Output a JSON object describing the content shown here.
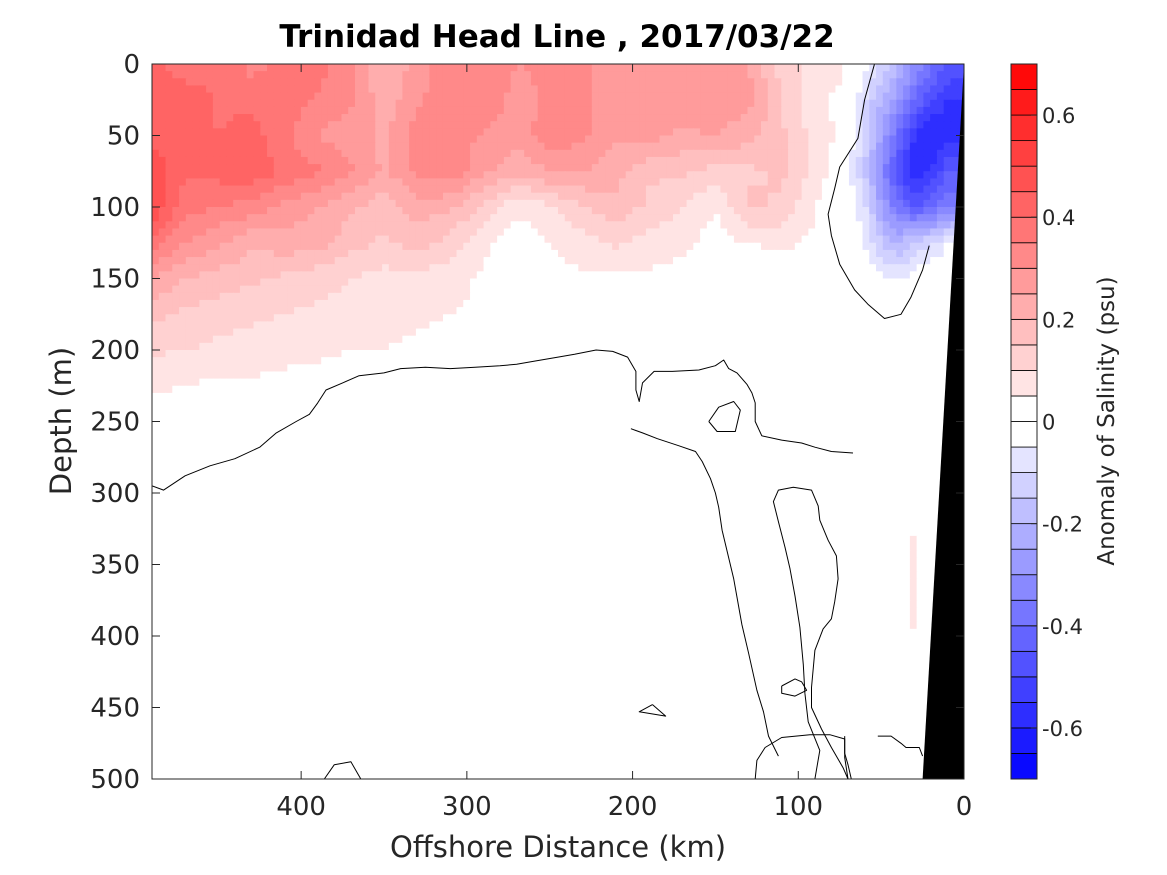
{
  "chart_data": {
    "type": "heatmap",
    "title": "Trinidad Head Line , 2017/03/22",
    "xlabel": "Offshore Distance (km)",
    "ylabel": "Depth (m)",
    "x_reversed": true,
    "y_reversed": true,
    "xlim": [
      490,
      0
    ],
    "ylim": [
      0,
      500
    ],
    "x_ticks": [
      400,
      300,
      200,
      100,
      0
    ],
    "y_ticks": [
      0,
      50,
      100,
      150,
      200,
      250,
      300,
      350,
      400,
      450,
      500
    ],
    "colorbar": {
      "label": "Anomaly of Salinity (psu)",
      "range": [
        -0.7,
        0.7
      ],
      "levels": 28,
      "ticks": [
        0.6,
        0.4,
        0.2,
        0,
        -0.2,
        -0.4,
        -0.6
      ],
      "tick_labels": [
        "0.6",
        "0.4",
        "0.2",
        "0",
        "-0.2",
        "-0.4",
        "-0.6"
      ],
      "colormap": "blue-white-red",
      "color_negative": "#0000ff",
      "color_zero": "#ffffff",
      "color_positive": "#ff0000"
    },
    "bathymetry_color": "#000000",
    "bathymetry_wedge": [
      [
        0,
        0
      ],
      [
        0,
        500
      ],
      [
        25,
        500
      ]
    ],
    "contour_level": 0,
    "zero_contours": [
      [
        [
          490,
          295
        ],
        [
          483,
          298
        ],
        [
          470,
          288
        ],
        [
          455,
          281
        ],
        [
          440,
          276
        ],
        [
          425,
          268
        ],
        [
          415,
          258
        ],
        [
          403,
          250
        ],
        [
          395,
          245
        ],
        [
          390,
          237
        ],
        [
          385,
          228
        ],
        [
          375,
          223
        ],
        [
          365,
          218
        ],
        [
          350,
          216
        ],
        [
          340,
          213
        ],
        [
          325,
          212
        ],
        [
          310,
          213
        ],
        [
          295,
          212
        ],
        [
          280,
          211
        ],
        [
          270,
          210
        ],
        [
          260,
          208
        ],
        [
          245,
          205
        ],
        [
          235,
          203
        ],
        [
          222,
          200
        ],
        [
          212,
          201
        ],
        [
          203,
          205
        ],
        [
          200,
          211
        ],
        [
          198,
          215
        ],
        [
          198,
          228
        ],
        [
          196,
          236
        ],
        [
          194,
          223
        ],
        [
          187,
          215
        ],
        [
          176,
          215
        ],
        [
          160,
          214
        ],
        [
          150,
          211
        ],
        [
          145,
          207
        ],
        [
          142,
          213
        ],
        [
          137,
          216
        ],
        [
          131,
          224
        ],
        [
          128,
          230
        ],
        [
          126,
          237
        ],
        [
          126,
          250
        ],
        [
          122,
          260
        ],
        [
          110,
          263
        ],
        [
          98,
          265
        ],
        [
          90,
          268
        ],
        [
          80,
          271
        ],
        [
          67,
          272
        ]
      ],
      [
        [
          154,
          250
        ],
        [
          148,
          240
        ],
        [
          139,
          236
        ],
        [
          135,
          242
        ],
        [
          138,
          257
        ],
        [
          149,
          257
        ],
        [
          154,
          250
        ]
      ],
      [
        [
          112,
          484
        ],
        [
          118,
          470
        ],
        [
          121,
          453
        ],
        [
          125,
          438
        ],
        [
          130,
          412
        ],
        [
          134,
          392
        ],
        [
          139,
          360
        ],
        [
          146,
          326
        ],
        [
          148,
          310
        ],
        [
          150,
          300
        ],
        [
          153,
          290
        ],
        [
          158,
          278
        ],
        [
          162,
          271
        ],
        [
          172,
          267
        ],
        [
          185,
          262
        ],
        [
          194,
          258
        ],
        [
          201,
          255
        ]
      ],
      [
        [
          90,
          500
        ],
        [
          87,
          480
        ],
        [
          94,
          460
        ],
        [
          96,
          440
        ],
        [
          97,
          420
        ],
        [
          99,
          394
        ],
        [
          102,
          372
        ],
        [
          105,
          353
        ],
        [
          108,
          338
        ],
        [
          112,
          320
        ],
        [
          115,
          306
        ],
        [
          112,
          298
        ],
        [
          103,
          296
        ],
        [
          92,
          298
        ],
        [
          88,
          309
        ],
        [
          87,
          319
        ],
        [
          82,
          333
        ],
        [
          77,
          344
        ],
        [
          76,
          360
        ],
        [
          78,
          376
        ],
        [
          80,
          388
        ],
        [
          85,
          395
        ],
        [
          90,
          410
        ],
        [
          92,
          436
        ],
        [
          92,
          450
        ],
        [
          86,
          465
        ],
        [
          80,
          478
        ],
        [
          73,
          492
        ],
        [
          70,
          500
        ]
      ],
      [
        [
          110,
          435
        ],
        [
          102,
          430
        ],
        [
          98,
          432
        ],
        [
          95,
          438
        ],
        [
          102,
          442
        ],
        [
          110,
          440
        ],
        [
          110,
          435
        ]
      ],
      [
        [
          188,
          448
        ],
        [
          180,
          456
        ],
        [
          196,
          453
        ],
        [
          188,
          448
        ]
      ],
      [
        [
          386,
          500
        ],
        [
          380,
          490
        ],
        [
          370,
          488
        ],
        [
          364,
          500
        ]
      ],
      [
        [
          70,
          500
        ],
        [
          72,
          485
        ],
        [
          72,
          472
        ],
        [
          81,
          469
        ],
        [
          93,
          469
        ],
        [
          110,
          471
        ],
        [
          120,
          478
        ],
        [
          125,
          487
        ],
        [
          126,
          500
        ]
      ],
      [
        [
          52,
          470
        ],
        [
          44,
          470
        ],
        [
          38,
          475
        ],
        [
          35,
          478
        ],
        [
          27,
          478
        ],
        [
          25,
          484
        ]
      ],
      [
        [
          72,
          470
        ],
        [
          72,
          482
        ],
        [
          70,
          490
        ],
        [
          68,
          500
        ]
      ],
      [
        [
          54,
          0
        ],
        [
          60,
          25
        ],
        [
          64,
          52
        ],
        [
          75,
          72
        ],
        [
          78,
          87
        ],
        [
          82,
          105
        ],
        [
          80,
          120
        ],
        [
          75,
          140
        ],
        [
          66,
          158
        ],
        [
          58,
          168
        ],
        [
          48,
          178
        ],
        [
          38,
          175
        ],
        [
          32,
          163
        ],
        [
          25,
          144
        ],
        [
          21,
          127
        ]
      ]
    ],
    "field": {
      "x": [
        490,
        470,
        450,
        430,
        410,
        390,
        370,
        350,
        330,
        310,
        290,
        270,
        250,
        230,
        210,
        190,
        170,
        150,
        130,
        110,
        90,
        75,
        60,
        50,
        40,
        30,
        20,
        10
      ],
      "y": [
        0,
        25,
        50,
        75,
        100,
        125,
        150,
        175,
        200,
        225,
        250,
        275,
        300,
        325,
        350,
        375,
        400,
        425,
        450,
        475,
        500
      ],
      "z": [
        [
          0.42,
          0.36,
          0.4,
          0.33,
          0.36,
          0.38,
          0.31,
          0.2,
          0.27,
          0.35,
          0.33,
          0.3,
          0.31,
          0.31,
          0.25,
          0.25,
          0.29,
          0.28,
          0.25,
          0.13,
          0.08,
          0.06,
          -0.02,
          -0.1,
          -0.2,
          -0.3,
          -0.38,
          -0.45
        ],
        [
          0.44,
          0.44,
          0.39,
          0.39,
          0.38,
          0.34,
          0.31,
          0.22,
          0.29,
          0.34,
          0.34,
          0.28,
          0.31,
          0.31,
          0.27,
          0.26,
          0.29,
          0.29,
          0.27,
          0.15,
          0.06,
          0.04,
          -0.1,
          -0.2,
          -0.28,
          -0.4,
          -0.5,
          -0.55
        ],
        [
          0.44,
          0.43,
          0.4,
          0.42,
          0.36,
          0.3,
          0.27,
          0.24,
          0.33,
          0.31,
          0.3,
          0.26,
          0.34,
          0.31,
          0.26,
          0.27,
          0.24,
          0.25,
          0.22,
          0.16,
          0.08,
          0.04,
          -0.12,
          -0.25,
          -0.4,
          -0.55,
          -0.6,
          -0.58
        ],
        [
          0.48,
          0.41,
          0.42,
          0.44,
          0.39,
          0.36,
          0.31,
          0.24,
          0.31,
          0.34,
          0.26,
          0.22,
          0.25,
          0.25,
          0.22,
          0.16,
          0.16,
          0.13,
          0.14,
          0.16,
          0.08,
          0.02,
          -0.15,
          -0.32,
          -0.48,
          -0.6,
          -0.55,
          -0.45
        ],
        [
          0.5,
          0.37,
          0.35,
          0.33,
          0.28,
          0.25,
          0.21,
          0.17,
          0.23,
          0.21,
          0.14,
          0.06,
          0.09,
          0.15,
          0.18,
          0.14,
          0.1,
          0.05,
          0.16,
          0.14,
          0.05,
          0.02,
          -0.08,
          -0.25,
          -0.38,
          -0.45,
          -0.42,
          -0.35
        ],
        [
          0.38,
          0.3,
          0.26,
          0.21,
          0.23,
          0.22,
          0.17,
          0.14,
          0.17,
          0.13,
          0.06,
          0.02,
          0.05,
          0.08,
          0.11,
          0.08,
          0.06,
          0.03,
          0.05,
          0.06,
          0.04,
          0.02,
          -0.05,
          -0.15,
          -0.2,
          -0.15,
          -0.1,
          -0.05
        ],
        [
          0.25,
          0.2,
          0.18,
          0.16,
          0.14,
          0.12,
          0.1,
          0.08,
          0.08,
          0.07,
          0.04,
          0.02,
          0.03,
          0.04,
          0.04,
          0.04,
          0.03,
          0.02,
          0.02,
          0.02,
          0.02,
          0.02,
          0.01,
          -0.04,
          -0.06,
          -0.02,
          0.0,
          0.0
        ],
        [
          0.17,
          0.14,
          0.12,
          0.11,
          0.1,
          0.09,
          0.08,
          0.07,
          0.06,
          0.05,
          0.04,
          0.03,
          0.03,
          0.03,
          0.03,
          0.03,
          0.02,
          0.02,
          0.01,
          0.01,
          0.01,
          0.01,
          0.01,
          0.0,
          0.0,
          0.01,
          0.05,
          0.0
        ],
        [
          0.11,
          0.1,
          0.09,
          0.08,
          0.07,
          0.06,
          0.05,
          0.05,
          0.04,
          0.03,
          0.03,
          0.02,
          0.02,
          0.02,
          0.02,
          0.02,
          0.01,
          0.01,
          0.01,
          0.01,
          0.01,
          0.01,
          0.01,
          0.01,
          0.0,
          0.02,
          0.05,
          0.0
        ],
        [
          0.06,
          0.05,
          0.04,
          0.04,
          0.03,
          0.03,
          0.02,
          0.02,
          0.02,
          0.01,
          0.01,
          0.01,
          0.01,
          0.01,
          0.01,
          0.01,
          0.0,
          0.0,
          0.0,
          0.0,
          0.0,
          0.01,
          0.02,
          0.01,
          0.0,
          0.02,
          0.03,
          0.0
        ],
        [
          0.03,
          0.02,
          0.02,
          0.02,
          0.01,
          0.01,
          0.01,
          0.01,
          0.01,
          0.0,
          0.0,
          0.0,
          0.0,
          0.0,
          0.0,
          0.0,
          0.0,
          0.0,
          0.0,
          0.0,
          0.01,
          0.02,
          0.02,
          0.0,
          0.0,
          0.01,
          0.03,
          0.0
        ],
        [
          0.01,
          0.01,
          0.01,
          0.01,
          0.0,
          0.0,
          0.0,
          0.0,
          0.0,
          0.0,
          0.0,
          0.0,
          0.0,
          0.0,
          0.0,
          0.0,
          0.0,
          0.0,
          0.0,
          0.0,
          0.0,
          0.01,
          0.01,
          0.0,
          0.0,
          0.01,
          0.03,
          0.0
        ],
        [
          0.0,
          0.0,
          0.0,
          0.0,
          0.0,
          0.0,
          0.0,
          0.0,
          0.0,
          0.0,
          -0.01,
          -0.02,
          -0.03,
          -0.03,
          -0.01,
          0.0,
          0.0,
          0.0,
          0.0,
          0.0,
          0.0,
          0.0,
          0.0,
          0.0,
          0.0,
          0.02,
          0.03,
          0.0
        ],
        [
          0.0,
          0.0,
          0.0,
          0.0,
          0.0,
          0.0,
          0.0,
          0.0,
          0.0,
          -0.01,
          -0.04,
          -0.05,
          -0.05,
          -0.05,
          -0.03,
          0.0,
          0.0,
          0.0,
          0.0,
          0.0,
          0.0,
          0.0,
          0.0,
          0.0,
          0.01,
          0.05,
          0.03,
          0.0
        ],
        [
          0.0,
          0.0,
          0.0,
          0.0,
          0.0,
          0.0,
          -0.01,
          -0.01,
          -0.01,
          -0.04,
          -0.05,
          -0.05,
          -0.05,
          -0.05,
          -0.04,
          0.0,
          0.0,
          0.0,
          0.0,
          0.0,
          0.0,
          0.0,
          0.0,
          0.0,
          0.02,
          0.06,
          0.03,
          0.0
        ],
        [
          0.0,
          0.0,
          0.0,
          0.0,
          0.0,
          0.0,
          -0.01,
          -0.04,
          -0.05,
          -0.05,
          -0.05,
          -0.05,
          -0.05,
          -0.05,
          -0.04,
          0.0,
          0.0,
          0.0,
          0.0,
          0.0,
          0.0,
          0.0,
          0.0,
          0.01,
          0.02,
          0.06,
          0.03,
          0.0
        ],
        [
          0.0,
          0.0,
          0.0,
          0.0,
          0.0,
          0.0,
          0.0,
          -0.02,
          -0.04,
          -0.05,
          -0.05,
          -0.05,
          -0.05,
          -0.05,
          -0.04,
          0.0,
          0.0,
          0.0,
          0.0,
          0.0,
          0.0,
          0.0,
          0.0,
          0.0,
          0.02,
          0.05,
          0.03,
          0.0
        ],
        [
          0.0,
          0.0,
          0.0,
          0.0,
          0.0,
          0.0,
          0.0,
          -0.01,
          -0.03,
          -0.05,
          -0.05,
          -0.05,
          -0.05,
          -0.05,
          -0.04,
          0.0,
          0.0,
          0.0,
          0.0,
          0.0,
          0.0,
          0.0,
          0.0,
          0.0,
          0.01,
          0.04,
          0.03,
          0.0
        ],
        [
          0.0,
          0.0,
          0.0,
          0.0,
          0.0,
          0.0,
          0.0,
          0.0,
          -0.02,
          -0.04,
          -0.05,
          -0.05,
          -0.05,
          -0.05,
          -0.04,
          0.0,
          0.0,
          0.0,
          0.0,
          0.0,
          0.0,
          0.0,
          0.0,
          0.0,
          0.0,
          0.02,
          0.02,
          0.0
        ],
        [
          0.0,
          0.0,
          0.0,
          0.0,
          0.0,
          0.0,
          0.0,
          0.0,
          -0.01,
          -0.03,
          -0.05,
          -0.05,
          -0.05,
          -0.05,
          -0.04,
          0.0,
          0.0,
          0.0,
          0.0,
          0.0,
          0.0,
          0.0,
          0.0,
          0.0,
          0.0,
          0.01,
          0.0,
          0.0
        ],
        [
          0.0,
          0.0,
          0.0,
          0.0,
          0.0,
          0.0,
          0.0,
          0.0,
          -0.01,
          -0.02,
          -0.05,
          -0.05,
          -0.05,
          -0.05,
          -0.04,
          0.0,
          0.0,
          0.0,
          0.0,
          0.0,
          0.0,
          0.0,
          0.0,
          0.0,
          0.0,
          0.0,
          0.0,
          0.0
        ]
      ]
    }
  }
}
